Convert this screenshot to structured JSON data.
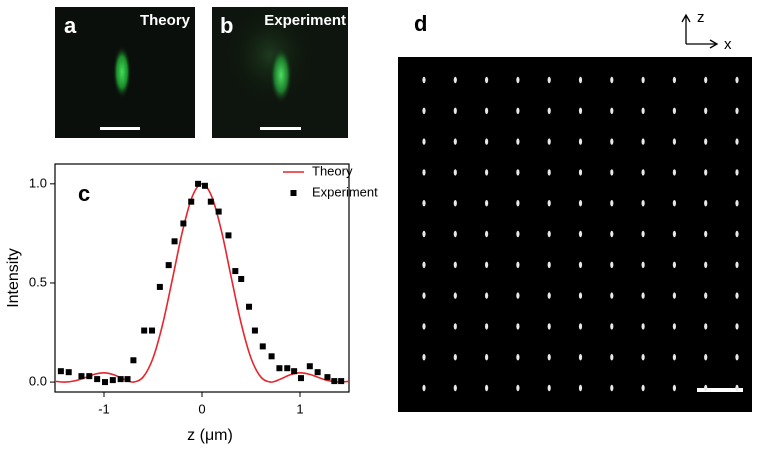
{
  "panels": {
    "a": {
      "label": "a",
      "title": "Theory"
    },
    "b": {
      "label": "b",
      "title": "Experiment"
    },
    "d": {
      "label": "d",
      "axis_z": "z",
      "axis_x": "x"
    }
  },
  "chart_data": {
    "type": "line",
    "panel_label": "c",
    "xlabel": "z (μm)",
    "ylabel": "Intensity",
    "xlim": [
      -1.5,
      1.5
    ],
    "ylim": [
      -0.05,
      1.1
    ],
    "xticks": [
      -1,
      0,
      1
    ],
    "yticks": [
      {
        "value": 0,
        "label": "0.0"
      },
      {
        "value": 0.5,
        "label": "0.5"
      },
      {
        "value": 1,
        "label": "1.0"
      }
    ],
    "legend": "upper right",
    "series": [
      {
        "name": "Theory",
        "type": "line",
        "color": "#e8242c",
        "x": [
          -1.5,
          -1.4,
          -1.3,
          -1.2,
          -1.1,
          -1.0,
          -0.9,
          -0.8,
          -0.7,
          -0.6,
          -0.5,
          -0.4,
          -0.3,
          -0.2,
          -0.1,
          0,
          0.1,
          0.2,
          0.3,
          0.4,
          0.5,
          0.6,
          0.7,
          0.8,
          0.9,
          1.0,
          1.1,
          1.2,
          1.3,
          1.4,
          1.5
        ],
        "values": [
          0.004,
          0,
          0.006,
          0.021,
          0.039,
          0.047,
          0.037,
          0.015,
          0,
          0.026,
          0.121,
          0.295,
          0.524,
          0.759,
          0.935,
          1,
          0.935,
          0.759,
          0.524,
          0.295,
          0.121,
          0.026,
          0,
          0.015,
          0.037,
          0.047,
          0.039,
          0.021,
          0.006,
          0,
          0.004
        ]
      },
      {
        "name": "Experiment",
        "type": "scatter",
        "color": "#000000",
        "x": [
          -1.44,
          -1.36,
          -1.23,
          -1.15,
          -1.07,
          -0.99,
          -0.91,
          -0.83,
          -0.76,
          -0.7,
          -0.59,
          -0.51,
          -0.43,
          -0.34,
          -0.28,
          -0.19,
          -0.11,
          -0.04,
          0.03,
          0.09,
          0.17,
          0.27,
          0.34,
          0.4,
          0.48,
          0.54,
          0.62,
          0.71,
          0.79,
          0.87,
          0.94,
          1.01,
          1.1,
          1.18,
          1.28,
          1.35,
          1.42
        ],
        "values": [
          0.055,
          0.05,
          0.03,
          0.03,
          0.015,
          0.0,
          0.01,
          0.015,
          0.015,
          0.11,
          0.26,
          0.26,
          0.48,
          0.59,
          0.71,
          0.8,
          0.91,
          1.0,
          0.99,
          0.91,
          0.86,
          0.74,
          0.56,
          0.52,
          0.38,
          0.26,
          0.18,
          0.13,
          0.07,
          0.07,
          0.055,
          0.02,
          0.08,
          0.05,
          0.025,
          0.005,
          0.005
        ]
      }
    ]
  }
}
